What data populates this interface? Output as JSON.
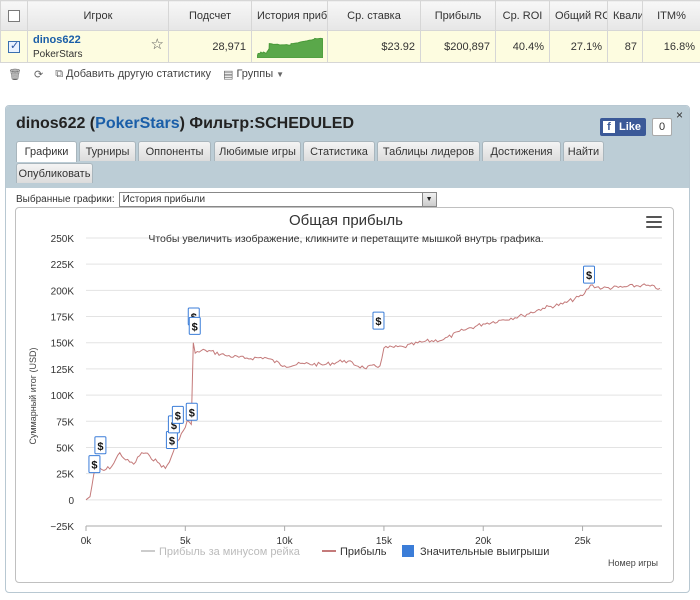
{
  "table": {
    "headers": [
      "",
      "Игрок",
      "Подсчет",
      "История прибы",
      "Ср. ставка",
      "Прибыль",
      "Ср. ROI",
      "Общий ROI",
      "Квали",
      "ITM%"
    ],
    "row": {
      "player_name": "dinos622",
      "network": "PokerStars",
      "count": "28,971",
      "avg_stake": "$23.92",
      "profit": "$200,897",
      "avg_roi": "40.4%",
      "total_roi": "27.1%",
      "quali": "87",
      "itm": "16.8%"
    }
  },
  "toolbar": {
    "add_stats": "Добавить другую статистику",
    "groups": "Группы"
  },
  "panel": {
    "player": "dinos622",
    "network": "PokerStars",
    "filter": "Фильтр:SCHEDULED",
    "fb_like": "Like",
    "fb_count": "0",
    "close": "×",
    "tabs": [
      "Графики",
      "Турниры",
      "Оппоненты",
      "Любимые игры",
      "Статистика",
      "Таблицы лидеров",
      "Достижения",
      "Найти",
      "Опубликовать"
    ],
    "selector_label": "Выбранные графики:",
    "selector_value": "История прибыли"
  },
  "colors": {
    "profit_line": "#c47a7a",
    "rake_line": "#cccccc",
    "big_wins": "#3b7dd8",
    "sparkline": "#5aa84a"
  },
  "chart_data": {
    "type": "line",
    "title": "Общая прибыль",
    "subtitle": "Чтобы увеличить изображение, кликните и перетащите мышкой внутрь графика.",
    "xlabel": "Номер игры",
    "ylabel": "Суммарный итог (USD)",
    "xlim": [
      0,
      29000
    ],
    "ylim": [
      -25000,
      250000
    ],
    "x_ticks": [
      0,
      5000,
      10000,
      15000,
      20000,
      25000
    ],
    "x_tick_labels": [
      "0k",
      "5k",
      "10k",
      "15k",
      "20k",
      "25k"
    ],
    "y_ticks": [
      -25000,
      0,
      25000,
      50000,
      75000,
      100000,
      125000,
      150000,
      175000,
      200000,
      225000,
      250000
    ],
    "y_tick_labels": [
      "−25K",
      "0",
      "25K",
      "50K",
      "75K",
      "100K",
      "125K",
      "150K",
      "175K",
      "200K",
      "225K",
      "250K"
    ],
    "legend": [
      "Прибыль за минусом рейка",
      "Прибыль",
      "Значительные выигрыши"
    ],
    "legend_placement": "bottom",
    "series": [
      {
        "name": "Прибыль",
        "x": [
          0,
          200,
          400,
          600,
          900,
          1300,
          1700,
          2000,
          2400,
          2800,
          3200,
          3600,
          4000,
          4200,
          4500,
          4700,
          4900,
          5100,
          5300,
          5400,
          5500,
          6000,
          7000,
          8000,
          9000,
          10000,
          11000,
          12000,
          13000,
          14000,
          14800,
          15000,
          16000,
          17000,
          18000,
          19000,
          20000,
          21000,
          22000,
          23000,
          24000,
          25000,
          25400,
          26000,
          27000,
          28000,
          28900
        ],
        "values": [
          0,
          3000,
          25000,
          30000,
          28000,
          32000,
          45000,
          38000,
          34000,
          45000,
          42000,
          36000,
          30000,
          36000,
          52000,
          58000,
          66000,
          76000,
          72000,
          150000,
          140000,
          143000,
          138000,
          135000,
          136000,
          128000,
          130000,
          129000,
          133000,
          126000,
          128000,
          145000,
          146000,
          151000,
          153000,
          162000,
          168000,
          172000,
          176000,
          183000,
          187000,
          195000,
          205000,
          202000,
          203000,
          205000,
          202000
        ]
      }
    ],
    "big_win_markers": [
      {
        "x": 400,
        "y": 25000
      },
      {
        "x": 700,
        "y": 43000
      },
      {
        "x": 4300,
        "y": 48000
      },
      {
        "x": 4400,
        "y": 63000
      },
      {
        "x": 4600,
        "y": 72000
      },
      {
        "x": 5300,
        "y": 75000
      },
      {
        "x": 5400,
        "y": 166000
      },
      {
        "x": 5450,
        "y": 157000
      },
      {
        "x": 14700,
        "y": 162000
      },
      {
        "x": 25300,
        "y": 206000
      }
    ],
    "big_win_label": "$"
  }
}
